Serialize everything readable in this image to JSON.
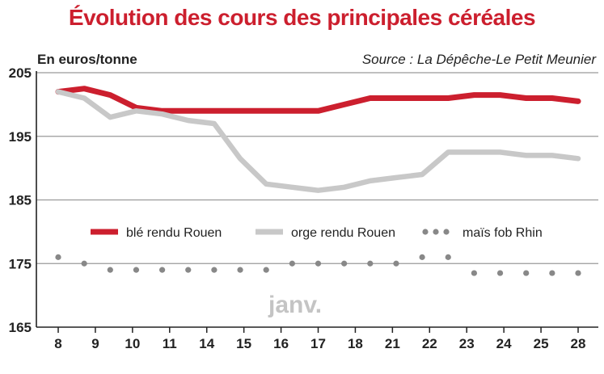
{
  "chart_data": {
    "type": "line",
    "title": "Évolution des cours des principales céréales",
    "ylabel": "En euros/tonne",
    "source": "Source : La Dépêche-Le Petit Meunier",
    "annotation": "janv.",
    "categories": [
      "8",
      "9",
      "10",
      "11",
      "14",
      "15",
      "16",
      "17",
      "18",
      "21",
      "22",
      "23",
      "24",
      "25",
      "28"
    ],
    "ylim": [
      165,
      205
    ],
    "yticks": [
      205,
      195,
      185,
      175,
      165
    ],
    "grid": true,
    "legend_position": "middle",
    "series": [
      {
        "name": "blé rendu Rouen",
        "color": "#cc1f2e",
        "style": "solid",
        "x": [
          8,
          9,
          10,
          11,
          12,
          13,
          14,
          15,
          16,
          17,
          18,
          19,
          20,
          21,
          22,
          23,
          24,
          25,
          26,
          27,
          28
        ],
        "values": [
          202,
          202.5,
          201.5,
          199.5,
          199,
          199,
          199,
          199,
          199,
          199,
          199,
          200,
          201,
          201,
          201,
          201,
          201.5,
          201.5,
          201,
          201,
          200.5
        ]
      },
      {
        "name": "orge rendu Rouen",
        "color": "#c8c8c8",
        "style": "solid",
        "x": [
          8,
          9,
          10,
          11,
          12,
          13,
          14,
          15,
          16,
          17,
          18,
          19,
          20,
          21,
          22,
          23,
          24,
          25,
          26,
          27,
          28
        ],
        "values": [
          202,
          201,
          198,
          199,
          198.5,
          197.5,
          197,
          191.5,
          187.5,
          187,
          186.5,
          187,
          188,
          188.5,
          189,
          192.5,
          192.5,
          192.5,
          192,
          192,
          191.5
        ]
      },
      {
        "name": "maïs fob Rhin",
        "color": "#888888",
        "style": "dotted",
        "x": [
          8,
          9,
          10,
          11,
          12,
          13,
          14,
          15,
          16,
          17,
          18,
          19,
          20,
          21,
          22,
          23,
          24,
          25,
          26,
          27,
          28
        ],
        "values": [
          176,
          175,
          174,
          174,
          174,
          174,
          174,
          174,
          174,
          175,
          175,
          175,
          175,
          175,
          176,
          176,
          173.5,
          173.5,
          173.5,
          173.5,
          173.5
        ]
      }
    ]
  }
}
